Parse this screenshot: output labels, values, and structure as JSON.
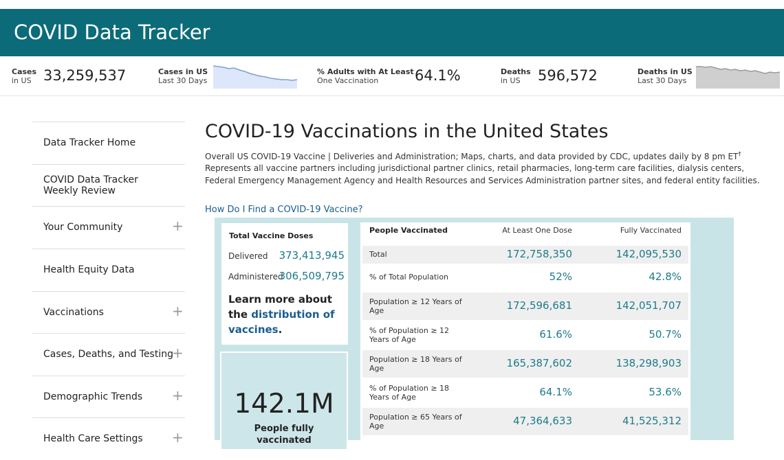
{
  "header": {
    "title": "COVID Data Tracker"
  },
  "stats": [
    {
      "label": "Cases",
      "sub": "in US",
      "value": "33,259,537"
    },
    {
      "label": "Cases in US",
      "sub": "Last 30 Days"
    },
    {
      "label": "% Adults with At Least",
      "sub": "One Vaccination",
      "value": "64.1%"
    },
    {
      "label": "Deaths",
      "sub": "in US",
      "value": "596,572"
    },
    {
      "label": "Deaths in US",
      "sub": "Last 30 Days"
    }
  ],
  "sparklines": [
    {
      "values": [
        33,
        32,
        31,
        29,
        30,
        27,
        25,
        22,
        20,
        18,
        17,
        15,
        14,
        13,
        13,
        12,
        13
      ],
      "ylim": [
        0,
        34
      ],
      "color": "#7f9fd2",
      "fill": "#dde7fb"
    },
    {
      "values": [
        32,
        32,
        31,
        32,
        30,
        28,
        29,
        27,
        28,
        26,
        27,
        25,
        26,
        24,
        22,
        24,
        23,
        24
      ],
      "ylim": [
        0,
        34
      ],
      "color": "#9a9a9a",
      "fill": "#cfcfcf"
    }
  ],
  "sidebar": [
    {
      "label": "Data Tracker Home"
    },
    {
      "label": "COVID Data Tracker Weekly Review"
    },
    {
      "label": "Your Community",
      "expand": "+"
    },
    {
      "label": "Health Equity Data"
    },
    {
      "label": "Vaccinations",
      "expand": "+"
    },
    {
      "label": "Cases, Deaths, and Testing",
      "expand": "+"
    },
    {
      "label": "Demographic Trends",
      "expand": "+"
    },
    {
      "label": "Health Care Settings",
      "expand": "+"
    }
  ],
  "main": {
    "title": "COVID-19 Vaccinations in the United States",
    "description": [
      "Overall US COVID-19 Vaccine | Deliveries and Administration; Maps, charts, and data provided by CDC, updates daily by 8 pm ET",
      "Represents all vaccine partners including jurisdictional partner clinics, retail pharmacies, long-term care facilities, dialysis centers,",
      "Federal Emergency Management Agency and Health Resources and Services Administration partner sites, and federal entity facilities."
    ],
    "dagger": "†",
    "link": "How Do I Find a COVID-19 Vaccine?"
  },
  "doses": {
    "title": "Total Vaccine Doses",
    "rows": [
      [
        "Delivered",
        "373,413,945"
      ],
      [
        "Administered",
        "306,509,795"
      ]
    ],
    "learn_more": {
      "text": "Learn more about the",
      "link": "distribution of vaccines",
      "suffix": "."
    }
  },
  "highlight": {
    "value": "142.1M",
    "caption": "People fully vaccinated"
  },
  "table": {
    "header": [
      "People Vaccinated",
      "At Least One Dose",
      "Fully Vaccinated"
    ],
    "rows": [
      [
        "Total",
        "172,758,350",
        "142,095,530"
      ],
      [
        "% of Total Population",
        "52%",
        "42.8%"
      ],
      [
        "Population ≥ 12 Years of Age",
        "172,596,681",
        "142,051,707"
      ],
      [
        "% of Population ≥ 12 Years of Age",
        "61.6%",
        "50.7%"
      ],
      [
        "Population ≥ 18 Years of Age",
        "165,387,602",
        "138,298,903"
      ],
      [
        "% of Population ≥ 18 Years of Age",
        "64.1%",
        "53.6%"
      ],
      [
        "Population ≥ 65 Years of Age",
        "47,364,633",
        "41,525,312"
      ]
    ]
  }
}
